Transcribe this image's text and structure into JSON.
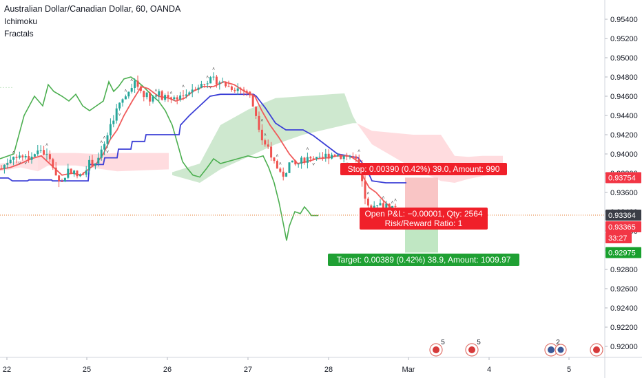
{
  "legend": {
    "title": "Australian Dollar/Canadian Dollar, 60, OANDA",
    "indicator1": "Ichimoku",
    "indicator2": "Fractals"
  },
  "colors": {
    "up_candle": "#26a69a",
    "down_candle": "#ef5350",
    "conversion_line": "#f05b5b",
    "base_line": "#3b3fd6",
    "lagging_span": "#4caf50",
    "cloud_bull": "#a5d6a7",
    "cloud_bear": "#ffcdd2",
    "stop_zone": "#f8bbbb",
    "target_zone": "#b9e4bd",
    "stop_label": "#f0202a",
    "target_label": "#1fa033",
    "price_tag_red": "#f23645",
    "price_tag_green": "#18a02d",
    "current_line": "#e57c33"
  },
  "chart_data": {
    "type": "candlestick",
    "symbol": "Australian Dollar/Canadian Dollar, 60, OANDA",
    "ylim": [
      0.9184,
      0.9558
    ],
    "y_ticks": [
      "0.95400",
      "0.95200",
      "0.95000",
      "0.94800",
      "0.94600",
      "0.94400",
      "0.94200",
      "0.94000",
      "0.93800",
      "0.93600",
      "0.93400",
      "0.93200",
      "0.93000",
      "0.92800",
      "0.92600",
      "0.92400",
      "0.92200",
      "0.92000"
    ],
    "x_ticks": [
      "22",
      "25",
      "26",
      "27",
      "28",
      "Mar",
      "4",
      "5"
    ],
    "price_tags": [
      {
        "label": "0.93754",
        "value": 0.93754,
        "kind": "stop"
      },
      {
        "label": "0.93364",
        "value": 0.93364,
        "kind": "current"
      },
      {
        "label": "0.93365",
        "value": 0.93365,
        "kind": "bid"
      },
      {
        "label": "33:27",
        "value": 0.9325,
        "kind": "countdown"
      },
      {
        "label": "0.92975",
        "value": 0.92975,
        "kind": "target"
      }
    ],
    "position": {
      "entry": 0.93364,
      "stop": 0.93754,
      "target": 0.92975,
      "stop_text": "Stop: 0.00390 (0.42%) 39.0, Amount: 990",
      "pnl_text": "Open P&L: −0.00001, Qty: 2564",
      "ratio_text": "Risk/Reward Ratio: 1",
      "target_text": "Target: 0.00389 (0.42%) 38.9, Amount: 1009.97"
    },
    "events": [
      {
        "x_label": "Mar",
        "count": "5"
      },
      {
        "x_label": "Mar",
        "count": "5"
      },
      {
        "x_label": "5",
        "count": "2"
      },
      {
        "x_label": "5",
        "count": ""
      }
    ]
  }
}
